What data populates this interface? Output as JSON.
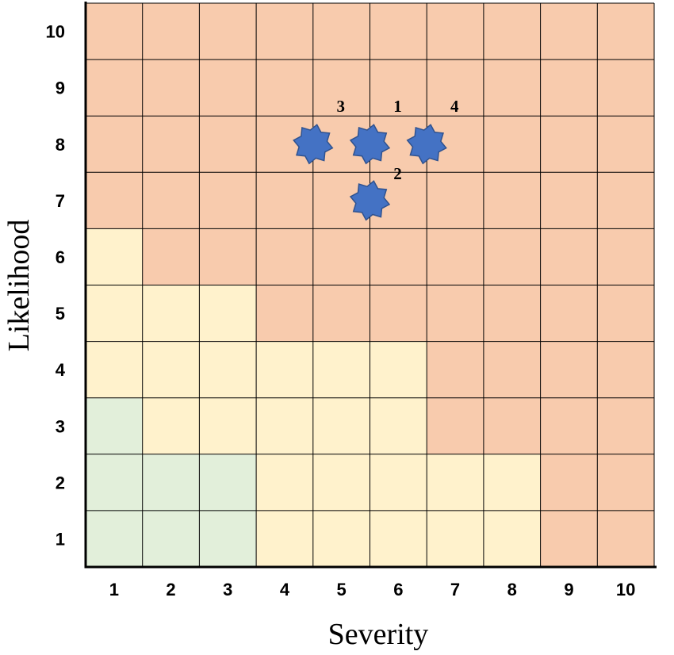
{
  "chart_data": {
    "type": "heatmap",
    "title": "",
    "xlabel": "Severity",
    "ylabel": "Likelihood",
    "x_categories": [
      "1",
      "2",
      "3",
      "4",
      "5",
      "6",
      "7",
      "8",
      "9",
      "10"
    ],
    "y_categories": [
      "1",
      "2",
      "3",
      "4",
      "5",
      "6",
      "7",
      "8",
      "9",
      "10"
    ],
    "zone_colors": {
      "low": "#e2efda",
      "medium": "#fff2cc",
      "high": "#f8cbad"
    },
    "cells_by_row_from_likelihood_1": [
      [
        "low",
        "low",
        "low",
        "medium",
        "medium",
        "medium",
        "medium",
        "medium",
        "high",
        "high"
      ],
      [
        "low",
        "low",
        "low",
        "medium",
        "medium",
        "medium",
        "medium",
        "medium",
        "high",
        "high"
      ],
      [
        "low",
        "medium",
        "medium",
        "medium",
        "medium",
        "medium",
        "high",
        "high",
        "high",
        "high"
      ],
      [
        "medium",
        "medium",
        "medium",
        "medium",
        "medium",
        "medium",
        "high",
        "high",
        "high",
        "high"
      ],
      [
        "medium",
        "medium",
        "medium",
        "high",
        "high",
        "high",
        "high",
        "high",
        "high",
        "high"
      ],
      [
        "medium",
        "high",
        "high",
        "high",
        "high",
        "high",
        "high",
        "high",
        "high",
        "high"
      ],
      [
        "high",
        "high",
        "high",
        "high",
        "high",
        "high",
        "high",
        "high",
        "high",
        "high"
      ],
      [
        "high",
        "high",
        "high",
        "high",
        "high",
        "high",
        "high",
        "high",
        "high",
        "high"
      ],
      [
        "high",
        "high",
        "high",
        "high",
        "high",
        "high",
        "high",
        "high",
        "high",
        "high"
      ],
      [
        "high",
        "high",
        "high",
        "high",
        "high",
        "high",
        "high",
        "high",
        "high",
        "high"
      ]
    ],
    "points": [
      {
        "label": "3",
        "severity": 4.5,
        "likelihood": 8.0
      },
      {
        "label": "1",
        "severity": 5.5,
        "likelihood": 8.0
      },
      {
        "label": "4",
        "severity": 6.5,
        "likelihood": 8.0
      },
      {
        "label": "2",
        "severity": 5.5,
        "likelihood": 7.0
      }
    ],
    "marker_color": "#4472c4",
    "marker_edge_color": "#2f528f",
    "grid": true
  }
}
